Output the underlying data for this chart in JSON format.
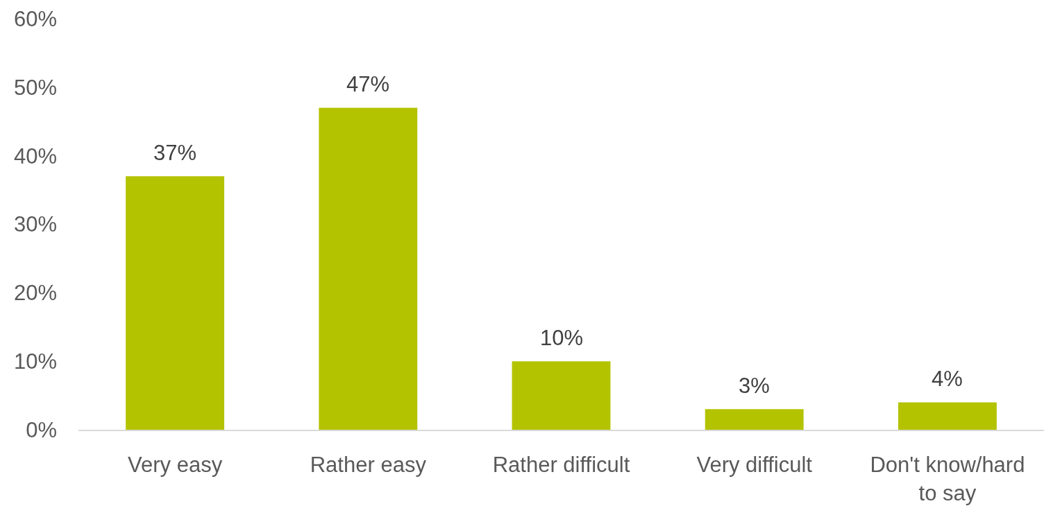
{
  "chart_data": {
    "type": "bar",
    "categories": [
      "Very easy",
      "Rather easy",
      "Rather difficult",
      "Very difficult",
      "Don't know/hard to say"
    ],
    "values": [
      37,
      47,
      10,
      3,
      4
    ],
    "color": "#b3c300",
    "value_labels": [
      "37%",
      "47%",
      "10%",
      "3%",
      "4%"
    ],
    "ylim": [
      0,
      60
    ],
    "yticks": [
      {
        "value": 0,
        "label": "0%"
      },
      {
        "value": 10,
        "label": "10%"
      },
      {
        "value": 20,
        "label": "20%"
      },
      {
        "value": 30,
        "label": "30%"
      },
      {
        "value": 40,
        "label": "40%"
      },
      {
        "value": 50,
        "label": "50%"
      },
      {
        "value": 60,
        "label": "60%"
      }
    ],
    "grid": false
  }
}
